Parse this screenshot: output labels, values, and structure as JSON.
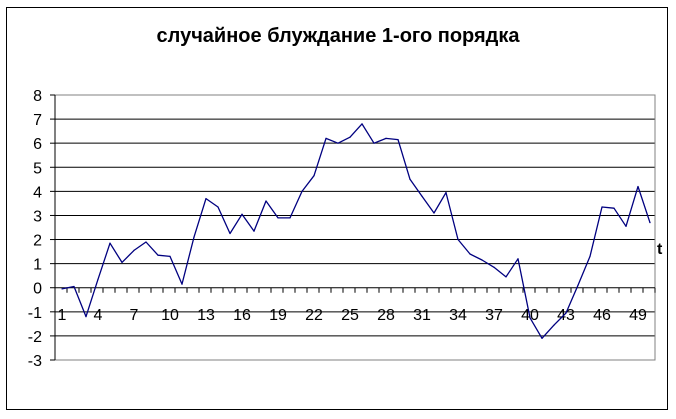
{
  "chart_data": {
    "type": "line",
    "title": "случайное блуждание 1-ого порядка",
    "xlabel": "t",
    "ylabel": "",
    "ylim": [
      -3,
      8
    ],
    "yticks": [
      "8",
      "7",
      "6",
      "5",
      "4",
      "3",
      "2",
      "1",
      "0",
      "-1",
      "-2",
      "-3"
    ],
    "xticks": [
      "1",
      "4",
      "7",
      "10",
      "13",
      "16",
      "19",
      "22",
      "25",
      "28",
      "31",
      "34",
      "37",
      "40",
      "43",
      "46",
      "49"
    ],
    "x": [
      1,
      2,
      3,
      4,
      5,
      6,
      7,
      8,
      9,
      10,
      11,
      12,
      13,
      14,
      15,
      16,
      17,
      18,
      19,
      20,
      21,
      22,
      23,
      24,
      25,
      26,
      27,
      28,
      29,
      30,
      31,
      32,
      33,
      34,
      35,
      36,
      37,
      38,
      39,
      40,
      41,
      42,
      43,
      44,
      45,
      46,
      47,
      48,
      49,
      50
    ],
    "series": [
      {
        "values": [
          -0.05,
          0.05,
          -1.2,
          0.35,
          1.85,
          1.05,
          1.55,
          1.9,
          1.35,
          1.3,
          0.15,
          2.1,
          3.7,
          3.35,
          2.25,
          3.05,
          2.35,
          3.6,
          2.9,
          2.9,
          4.0,
          4.65,
          6.2,
          6.0,
          6.25,
          6.8,
          6.0,
          6.2,
          6.15,
          4.5,
          3.8,
          3.1,
          3.95,
          2.0,
          1.4,
          1.15,
          0.85,
          0.45,
          1.2,
          -1.25,
          -2.1,
          -1.55,
          -1.05,
          0.1,
          1.3,
          3.35,
          3.3,
          2.55,
          4.2,
          2.7
        ],
        "color": "#000080"
      }
    ],
    "grid": true,
    "legend": "none",
    "plot_background": "#ffffff",
    "gridline_color": "#000000",
    "plot_border_color": "#808080"
  }
}
